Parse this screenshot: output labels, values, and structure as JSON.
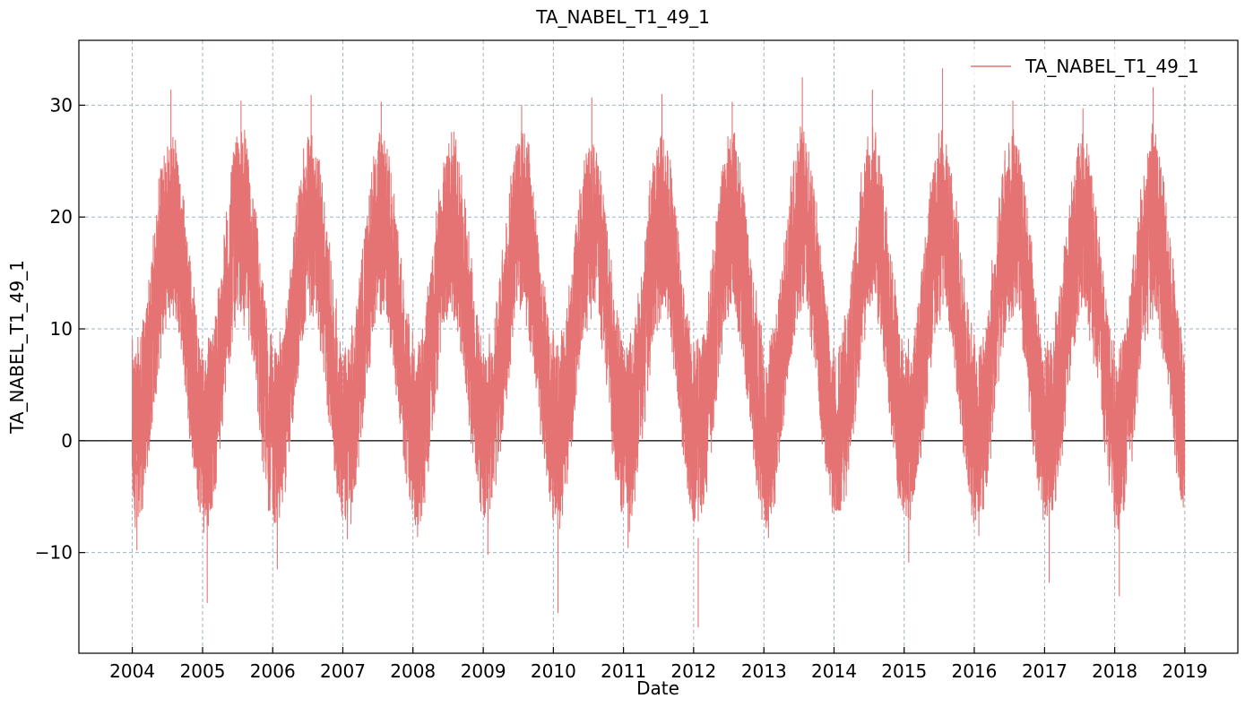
{
  "chart_data": {
    "type": "line",
    "title": "TA_NABEL_T1_49_1",
    "xlabel": "Date",
    "ylabel": "TA_NABEL_T1_49_1",
    "xlim": [
      "2003-03-29",
      "2019-10-04"
    ],
    "ylim": [
      -19.0,
      35.8
    ],
    "x_ticks": [
      "2004",
      "2005",
      "2006",
      "2007",
      "2008",
      "2009",
      "2010",
      "2011",
      "2012",
      "2013",
      "2014",
      "2015",
      "2016",
      "2017",
      "2018",
      "2019"
    ],
    "y_ticks": [
      -10,
      0,
      10,
      20,
      30
    ],
    "y_tick_labels": [
      "−10",
      "0",
      "10",
      "20",
      "30"
    ],
    "grid": true,
    "zero_line": true,
    "legend_position": "top-right",
    "series": [
      {
        "name": "TA_NABEL_T1_49_1",
        "color": "#e57373",
        "x_start": "2004-01-01",
        "x_end": "2018-12-31",
        "annual_stats": [
          {
            "year": 2004,
            "max": 31.4,
            "min": -9.8
          },
          {
            "year": 2005,
            "max": 30.4,
            "min": -14.5
          },
          {
            "year": 2006,
            "max": 30.9,
            "min": -11.5
          },
          {
            "year": 2007,
            "max": 30.3,
            "min": -8.8
          },
          {
            "year": 2008,
            "max": 27.6,
            "min": -8.6
          },
          {
            "year": 2009,
            "max": 30.0,
            "min": -10.2
          },
          {
            "year": 2010,
            "max": 30.7,
            "min": -15.4
          },
          {
            "year": 2011,
            "max": 31.0,
            "min": -9.6
          },
          {
            "year": 2012,
            "max": 30.3,
            "min": -16.7
          },
          {
            "year": 2013,
            "max": 32.5,
            "min": -8.7
          },
          {
            "year": 2014,
            "max": 31.4,
            "min": -6.2
          },
          {
            "year": 2015,
            "max": 33.3,
            "min": -10.9
          },
          {
            "year": 2016,
            "max": 30.4,
            "min": -8.5
          },
          {
            "year": 2017,
            "max": 29.7,
            "min": -12.7
          },
          {
            "year": 2018,
            "max": 31.6,
            "min": -13.9
          }
        ]
      }
    ]
  },
  "colors": {
    "series": "#e57373",
    "grid": "#9fb3bf",
    "axis": "#000000"
  }
}
